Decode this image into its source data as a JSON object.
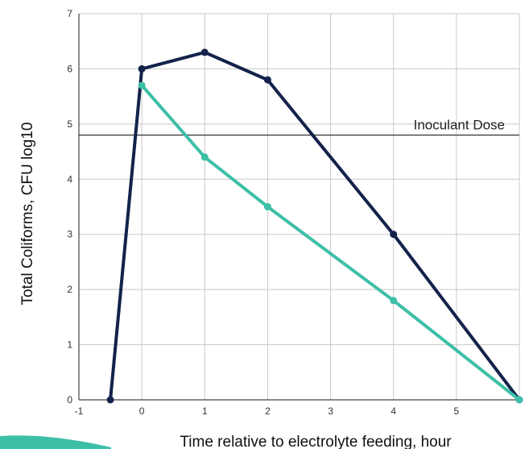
{
  "chart_data": {
    "type": "line",
    "xlabel": "Time relative to electrolyte feeding, hour",
    "ylabel": "Total Coliforms, CFU log10",
    "xlim": [
      -1,
      6
    ],
    "ylim": [
      0,
      7
    ],
    "x_ticks": [
      -1,
      0,
      1,
      2,
      3,
      4,
      5
    ],
    "y_ticks": [
      0,
      1,
      2,
      3,
      4,
      5,
      6,
      7
    ],
    "grid": true,
    "series": [
      {
        "color": "#13224a",
        "points": [
          [
            -0.5,
            0
          ],
          [
            0,
            6.0
          ],
          [
            1,
            6.3
          ],
          [
            2,
            5.8
          ],
          [
            4,
            3.0
          ],
          [
            6,
            0
          ]
        ]
      },
      {
        "color": "#3dbfa7",
        "points": [
          [
            0,
            5.7
          ],
          [
            1,
            4.4
          ],
          [
            2,
            3.5
          ],
          [
            4,
            1.8
          ],
          [
            6,
            0
          ]
        ]
      }
    ],
    "reference_line": {
      "y": 4.8,
      "label": "Inoculant Dose",
      "color": "#222222"
    }
  },
  "decor": {
    "wedge_color": "#3dbfa7"
  }
}
